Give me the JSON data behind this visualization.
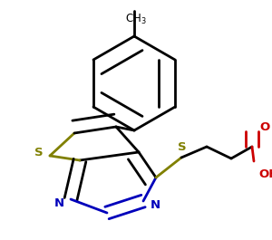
{
  "background": "#ffffff",
  "bond_color": "#000000",
  "sulfur_color": "#808000",
  "nitrogen_color": "#0000bb",
  "oxygen_color": "#cc0000",
  "line_width": 2.0,
  "dbo": 0.018,
  "xlim": [
    0,
    300
  ],
  "ylim": [
    0,
    265
  ]
}
